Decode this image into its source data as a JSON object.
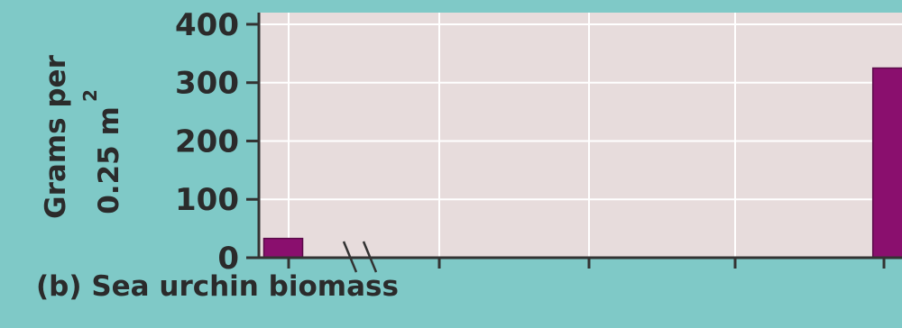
{
  "chart_data": {
    "type": "bar",
    "caption": "(b) Sea urchin biomass",
    "ylabel_line1": "Grams per",
    "ylabel_line2": "0.25 m",
    "ylabel_superscript": "2",
    "ylim": [
      0,
      420
    ],
    "yticks": [
      0,
      100,
      200,
      300,
      400
    ],
    "axis_break": true,
    "grid": true,
    "bar_color": "#8a0f6e",
    "plot_background": "#e7dcdc",
    "figure_background": "#7fc9c7",
    "bars": [
      {
        "x": 1972,
        "value": 33
      },
      {
        "x": 1997,
        "value": 325
      }
    ],
    "xlim": [
      1971,
      1997.4
    ]
  }
}
